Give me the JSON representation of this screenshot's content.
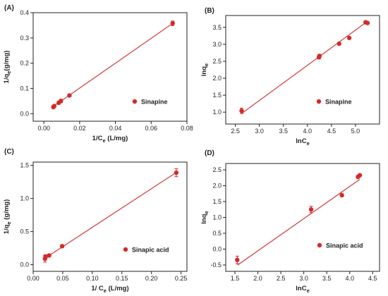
{
  "chart_data": [
    {
      "panel": "(A)",
      "type": "scatter",
      "xlabel": "1/C",
      "xlabel_sub": "e",
      "xlabel_unit": " (L/mg)",
      "ylabel": "1/q",
      "ylabel_sub": "e",
      "ylabel_unit": "(g/mg)",
      "xlim": [
        -0.006,
        0.08
      ],
      "ylim": [
        -0.03,
        0.4
      ],
      "xticks": [
        0.0,
        0.02,
        0.04,
        0.06,
        0.08
      ],
      "xticklabels": [
        "0.00",
        "0.02",
        "0.04",
        "0.06",
        "0.08"
      ],
      "yticks": [
        0.0,
        0.1,
        0.2,
        0.3,
        0.4
      ],
      "yticklabels": [
        "0.0",
        "0.1",
        "0.2",
        "0.3",
        "0.4"
      ],
      "legend": "Sinapine",
      "legend_position": "right",
      "color": "#d42a2a",
      "series": [
        {
          "name": "Sinapine",
          "x": [
            0.0053,
            0.0058,
            0.0083,
            0.0095,
            0.0143,
            0.072
          ],
          "y": [
            0.026,
            0.03,
            0.043,
            0.05,
            0.072,
            0.358
          ],
          "err": [
            0.005,
            0.005,
            0.006,
            0.007,
            0.005,
            0.009
          ]
        }
      ],
      "fit": [
        [
          0.0045,
          0.025
        ],
        [
          0.0725,
          0.36
        ]
      ]
    },
    {
      "panel": "(B)",
      "type": "scatter",
      "xlabel": "lnC",
      "xlabel_sub": "e",
      "xlabel_unit": "",
      "ylabel": "lnq",
      "ylabel_sub": "e",
      "ylabel_unit": "",
      "xlim": [
        2.3,
        5.5
      ],
      "ylim": [
        0.65,
        3.85
      ],
      "xticks": [
        2.5,
        3.0,
        3.5,
        4.0,
        4.5,
        5.0
      ],
      "xticklabels": [
        "2.5",
        "3.0",
        "3.5",
        "4.0",
        "4.5",
        "5.0"
      ],
      "yticks": [
        1.0,
        1.5,
        2.0,
        2.5,
        3.0,
        3.5
      ],
      "yticklabels": [
        "1.0",
        "1.5",
        "2.0",
        "2.5",
        "3.0",
        "3.5"
      ],
      "legend": "Sinapine",
      "legend_position": "right",
      "color": "#d42a2a",
      "series": [
        {
          "name": "Sinapine",
          "x": [
            2.63,
            4.24,
            4.25,
            4.66,
            4.87,
            5.21,
            5.25
          ],
          "y": [
            1.04,
            2.62,
            2.66,
            3.02,
            3.19,
            3.65,
            3.63
          ],
          "err": [
            0.08,
            0.05,
            0.04,
            0.03,
            0.03,
            0.03,
            0.03
          ]
        }
      ],
      "fit": [
        [
          2.63,
          0.96
        ],
        [
          5.25,
          3.68
        ]
      ]
    },
    {
      "panel": "(C)",
      "type": "scatter",
      "xlabel": "1/ C",
      "xlabel_sub": "e",
      "xlabel_unit": " (L/mg)",
      "ylabel": "1/q",
      "ylabel_sub": "e",
      "ylabel_unit": " (g/mg)",
      "xlim": [
        0.0,
        0.26
      ],
      "ylim": [
        -0.1,
        1.55
      ],
      "xticks": [
        0.0,
        0.05,
        0.1,
        0.15,
        0.2,
        0.25
      ],
      "xticklabels": [
        "0.00",
        "0.05",
        "0.10",
        "0.15",
        "0.20",
        "0.25"
      ],
      "yticks": [
        0.0,
        0.5,
        1.0,
        1.5
      ],
      "yticklabels": [
        "0.0",
        "0.5",
        "1.0",
        "1.5"
      ],
      "legend": "Sinapic acid",
      "legend_position": "right",
      "color": "#d42a2a",
      "series": [
        {
          "name": "Sinapic acid",
          "x": [
            0.02,
            0.021,
            0.027,
            0.049,
            0.242
          ],
          "y": [
            0.09,
            0.12,
            0.14,
            0.28,
            1.39
          ],
          "err": [
            0.05,
            0.03,
            0.02,
            0.02,
            0.06
          ]
        }
      ],
      "fit": [
        [
          0.017,
          0.08
        ],
        [
          0.243,
          1.4
        ]
      ]
    },
    {
      "panel": "(D)",
      "type": "scatter",
      "xlabel": "lnC",
      "xlabel_sub": "e",
      "xlabel_unit": "",
      "ylabel": "lnq",
      "ylabel_sub": "e",
      "ylabel_unit": "",
      "xlim": [
        1.3,
        4.65
      ],
      "ylim": [
        -0.7,
        2.7
      ],
      "xticks": [
        1.5,
        2.0,
        2.5,
        3.0,
        3.5,
        4.0,
        4.5
      ],
      "xticklabels": [
        "1.5",
        "2.0",
        "2.5",
        "3.0",
        "3.5",
        "4.0",
        "4.5"
      ],
      "yticks": [
        -0.5,
        0.0,
        0.5,
        1.0,
        1.5,
        2.0,
        2.5
      ],
      "yticklabels": [
        "-0.5",
        "0.0",
        "0.5",
        "1.0",
        "1.5",
        "2.0",
        "2.5"
      ],
      "legend": "Sinapic acid",
      "legend_position": "right",
      "color": "#d42a2a",
      "series": [
        {
          "name": "Sinapic acid",
          "x": [
            1.55,
            3.16,
            3.83,
            4.18,
            4.22
          ],
          "y": [
            -0.34,
            1.25,
            1.7,
            2.28,
            2.33
          ],
          "err": [
            0.12,
            0.1,
            0.04,
            0.04,
            0.04
          ]
        }
      ],
      "fit": [
        [
          1.56,
          -0.5
        ],
        [
          4.22,
          2.2
        ]
      ]
    }
  ]
}
